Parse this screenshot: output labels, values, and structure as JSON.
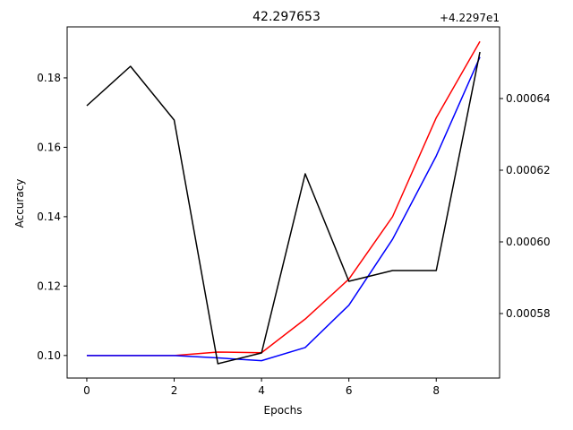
{
  "chart_data": {
    "type": "line",
    "title": "42.297653",
    "xlabel": "Epochs",
    "ylabel": "Accuracy",
    "y2_offset_label": "+4.2297e1",
    "x": [
      0,
      1,
      2,
      3,
      4,
      5,
      6,
      7,
      8,
      9
    ],
    "xlim": [
      -0.45,
      9.45
    ],
    "x_ticks": [
      0,
      2,
      4,
      6,
      8
    ],
    "ylim": [
      0.0935,
      0.1947
    ],
    "y_ticks": [
      0.1,
      0.12,
      0.14,
      0.16,
      0.18
    ],
    "y2lim": [
      0.000562,
      0.00066
    ],
    "y2_ticks": [
      0.00058,
      0.0006,
      0.00062,
      0.00064
    ],
    "grid": false,
    "series": [
      {
        "axis": "left",
        "color": "#ff0000",
        "values": [
          0.1,
          0.1,
          0.1,
          0.101,
          0.1008,
          0.1105,
          0.122,
          0.14,
          0.1685,
          0.1905
        ]
      },
      {
        "axis": "left",
        "color": "#0000ff",
        "values": [
          0.1,
          0.1,
          0.1,
          0.0993,
          0.0985,
          0.1023,
          0.1145,
          0.1335,
          0.1575,
          0.186
        ]
      },
      {
        "axis": "right",
        "color": "#000000",
        "values": [
          0.000638,
          0.000649,
          0.000634,
          0.000566,
          0.000569,
          0.000619,
          0.000589,
          0.000592,
          0.000592,
          0.000653
        ]
      }
    ]
  }
}
